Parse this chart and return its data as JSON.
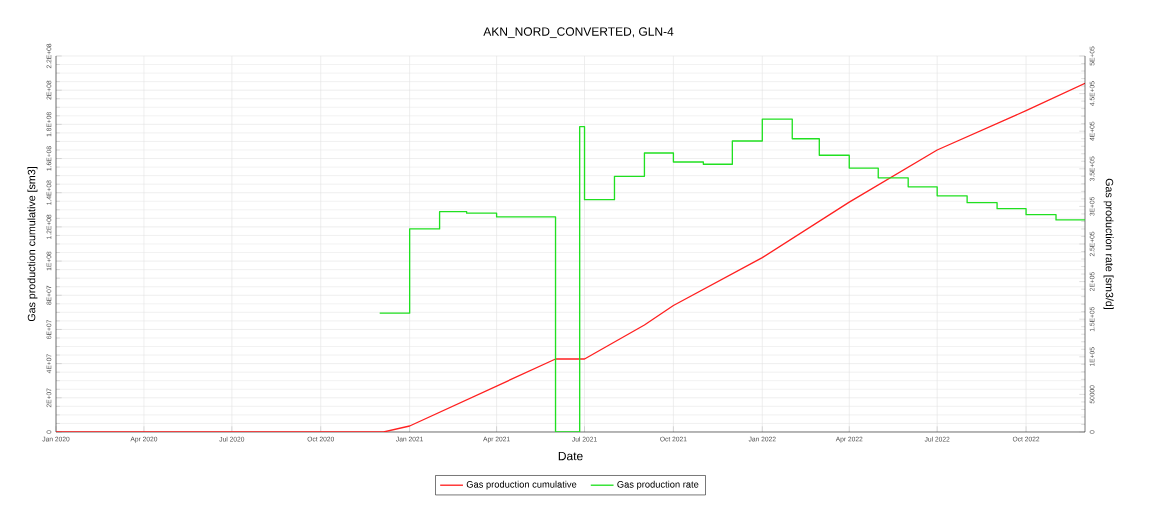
{
  "chart_data": {
    "type": "line",
    "title": "AKN_NORD_CONVERTED, GLN-4",
    "xlabel": "Date",
    "ylabel": "Gas production cumulative [sm3]",
    "y2label": "Gas production rate [sm3/d]",
    "xlim": [
      "2020-01-01",
      "2022-12-01"
    ],
    "xticks": [
      {
        "value": "2020-01",
        "label": "Jan 2020"
      },
      {
        "value": "2020-04",
        "label": "Apr 2020"
      },
      {
        "value": "2020-07",
        "label": "Jul 2020"
      },
      {
        "value": "2020-10",
        "label": "Oct 2020"
      },
      {
        "value": "2021-01",
        "label": "Jan 2021"
      },
      {
        "value": "2021-04",
        "label": "Apr 2021"
      },
      {
        "value": "2021-07",
        "label": "Jul 2021"
      },
      {
        "value": "2021-10",
        "label": "Oct 2021"
      },
      {
        "value": "2022-01",
        "label": "Jan 2022"
      },
      {
        "value": "2022-04",
        "label": "Apr 2022"
      },
      {
        "value": "2022-07",
        "label": "Jul 2022"
      },
      {
        "value": "2022-10",
        "label": "Oct 2022"
      }
    ],
    "ylim": [
      0,
      220000000
    ],
    "yticks": [
      0,
      {
        "value": 20000000,
        "label": "2E+07"
      },
      {
        "value": 40000000,
        "label": "4E+07"
      },
      {
        "value": 60000000,
        "label": "6E+07"
      },
      {
        "value": 80000000,
        "label": "8E+07"
      },
      {
        "value": 100000000,
        "label": "1E+08"
      },
      {
        "value": 120000000,
        "label": "1.2E+08"
      },
      {
        "value": 140000000,
        "label": "1.4E+08"
      },
      {
        "value": 160000000,
        "label": "1.6E+08"
      },
      {
        "value": 180000000,
        "label": "1.8E+08"
      },
      {
        "value": 200000000,
        "label": "2E+08"
      },
      {
        "value": 220000000,
        "label": "2.2E+08"
      }
    ],
    "y2lim": [
      0,
      500000
    ],
    "y2ticks": [
      0,
      50000,
      {
        "value": 100000,
        "label": "1E+05"
      },
      {
        "value": 150000,
        "label": "1.5E+05"
      },
      {
        "value": 200000,
        "label": "2E+05"
      },
      {
        "value": 250000,
        "label": "2.5E+05"
      },
      {
        "value": 300000,
        "label": "3E+05"
      },
      {
        "value": 350000,
        "label": "3.5E+05"
      },
      {
        "value": 400000,
        "label": "4E+05"
      },
      {
        "value": 450000,
        "label": "4.5E+05"
      },
      {
        "value": 500000,
        "label": "5E+05"
      }
    ],
    "grid": true,
    "legend": "bottom",
    "series": [
      {
        "name": "Gas production cumulative",
        "color": "#ff2020",
        "x": [
          "2020-01-01",
          "2020-12-05",
          "2021-01-01",
          "2021-06-01",
          "2021-07-01",
          "2021-09-01",
          "2021-10-01",
          "2022-01-01",
          "2022-04-01",
          "2022-07-01",
          "2022-10-01",
          "2022-12-01"
        ],
        "values": [
          0,
          0,
          3500000,
          42700000,
          42700000,
          62600000,
          74000000,
          102000000,
          134500000,
          165000000,
          188000000,
          204000000
        ]
      },
      {
        "name": "Gas production rate",
        "color": "#20e020",
        "type": "step",
        "axis": "y2",
        "x": [
          "2020-12-01",
          "2021-01-01",
          "2021-02-01",
          "2021-03-01",
          "2021-04-01",
          "2021-06-01",
          "2021-06-26",
          "2021-07-01",
          "2021-08-01",
          "2021-09-01",
          "2021-10-01",
          "2021-11-01",
          "2021-12-01",
          "2022-01-01",
          "2022-02-01",
          "2022-03-01",
          "2022-04-01",
          "2022-05-01",
          "2022-06-01",
          "2022-07-01",
          "2022-08-01",
          "2022-09-01",
          "2022-10-01",
          "2022-11-01",
          "2022-12-01"
        ],
        "values": [
          158000,
          270000,
          293000,
          291000,
          286000,
          0,
          406000,
          309000,
          340000,
          371000,
          359000,
          356000,
          387000,
          416000,
          390000,
          368000,
          351000,
          338000,
          326000,
          314000,
          305000,
          297000,
          289000,
          282000,
          282000
        ]
      }
    ]
  }
}
